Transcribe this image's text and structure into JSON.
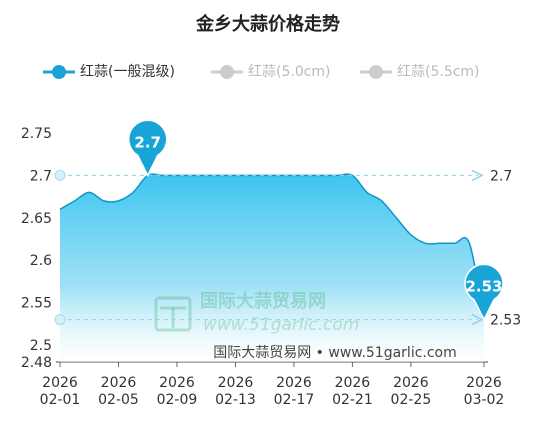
{
  "title": "金乡大蒜价格走势",
  "legend": [
    {
      "label": "红蒜(一般混级)",
      "color": "#1ba3d6",
      "active": true
    },
    {
      "label": "红蒜(5.0cm)",
      "color": "#cccccc",
      "active": false
    },
    {
      "label": "红蒜(5.5cm)",
      "color": "#cccccc",
      "active": false
    }
  ],
  "watermark": {
    "name": "国际大蒜贸易网",
    "url": "www.51garlic.com"
  },
  "source": "国际大蒜贸易网 • www.51garlic.com",
  "chart_data": {
    "type": "area",
    "title": "金乡大蒜价格走势",
    "series": [
      {
        "name": "红蒜(一般混级)",
        "color": "#1ba3d6",
        "x": [
          "2026-02-01",
          "2026-02-02",
          "2026-02-03",
          "2026-02-04",
          "2026-02-05",
          "2026-02-06",
          "2026-02-07",
          "2026-02-08",
          "2026-02-09",
          "2026-02-10",
          "2026-02-11",
          "2026-02-12",
          "2026-02-13",
          "2026-02-14",
          "2026-02-15",
          "2026-02-16",
          "2026-02-17",
          "2026-02-18",
          "2026-02-19",
          "2026-02-20",
          "2026-02-21",
          "2026-02-22",
          "2026-02-23",
          "2026-02-24",
          "2026-02-25",
          "2026-02-26",
          "2026-02-27",
          "2026-02-28",
          "2026-03-01",
          "2026-03-02"
        ],
        "values": [
          2.66,
          2.67,
          2.68,
          2.67,
          2.67,
          2.68,
          2.7,
          2.7,
          2.7,
          2.7,
          2.7,
          2.7,
          2.7,
          2.7,
          2.7,
          2.7,
          2.7,
          2.7,
          2.7,
          2.7,
          2.7,
          2.68,
          2.67,
          2.65,
          2.63,
          2.62,
          2.62,
          2.62,
          2.62,
          2.53
        ]
      }
    ],
    "x_tick_labels": [
      {
        "year": "2026",
        "date": "02-01"
      },
      {
        "year": "2026",
        "date": "02-05"
      },
      {
        "year": "2026",
        "date": "02-09"
      },
      {
        "year": "2026",
        "date": "02-13"
      },
      {
        "year": "2026",
        "date": "02-17"
      },
      {
        "year": "2026",
        "date": "02-21"
      },
      {
        "year": "2026",
        "date": "02-25"
      },
      {
        "year": "2026",
        "date": "03-02"
      }
    ],
    "y_ticks": [
      "2.75",
      "2.7",
      "2.65",
      "2.6",
      "2.55",
      "2.5",
      "2.48"
    ],
    "ylim": [
      2.48,
      2.75
    ],
    "markers": [
      {
        "label": "2.7",
        "date": "2026-02-07",
        "value": 2.7
      },
      {
        "label": "2.53",
        "date": "2026-03-02",
        "value": 2.53
      }
    ],
    "reference_lines": [
      {
        "value": 2.7,
        "label": "2.7"
      },
      {
        "value": 2.53,
        "label": "2.53"
      }
    ]
  }
}
